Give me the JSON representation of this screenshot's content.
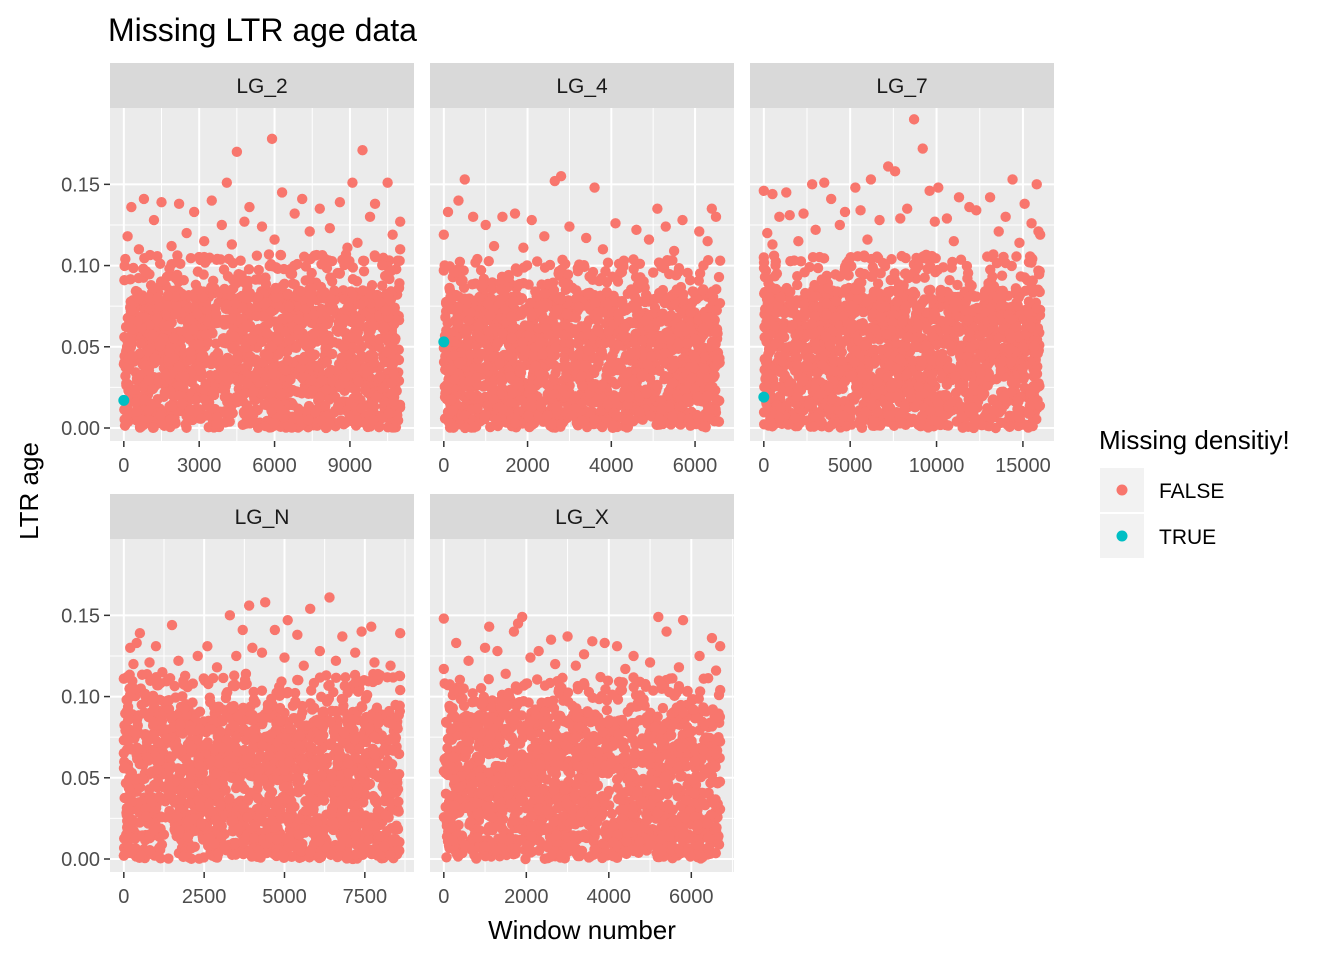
{
  "chart_data": {
    "type": "scatter",
    "title": "Missing LTR age data",
    "xlabel": "Window number",
    "ylabel": "LTR age",
    "legend": {
      "title": "Missing densitiy!",
      "position": "right",
      "entries": [
        {
          "label": "FALSE",
          "color": "#F8766D"
        },
        {
          "label": "TRUE",
          "color": "#00BFC4"
        }
      ]
    },
    "grid": true,
    "y_ticks": [
      0.0,
      0.05,
      0.1,
      0.15
    ],
    "y_tick_labels": [
      "0.00",
      "0.05",
      "0.10",
      "0.15"
    ],
    "ylim": [
      -0.008,
      0.197
    ],
    "panels": [
      {
        "name": "LG_2",
        "xlim": [
          -550,
          11550
        ],
        "x_ticks": [
          0,
          3000,
          6000,
          9000
        ],
        "x_tick_labels": [
          "0",
          "3000",
          "6000",
          "9000"
        ],
        "n_windows": 11000,
        "series": [
          {
            "name": "FALSE",
            "bulk_range": [
              0.0,
              0.085
            ],
            "outliers": [
              [
                4500,
                0.17
              ],
              [
                5900,
                0.178
              ],
              [
                9500,
                0.171
              ],
              [
                4100,
                0.151
              ],
              [
                6300,
                0.145
              ],
              [
                9100,
                0.151
              ],
              [
                10500,
                0.151
              ],
              [
                800,
                0.141
              ],
              [
                3500,
                0.14
              ],
              [
                7100,
                0.141
              ],
              [
                8600,
                0.139
              ],
              [
                2200,
                0.138
              ],
              [
                10000,
                0.138
              ],
              [
                1500,
                0.139
              ],
              [
                5000,
                0.136
              ],
              [
                300,
                0.136
              ],
              [
                7800,
                0.135
              ],
              [
                2800,
                0.133
              ],
              [
                6800,
                0.132
              ],
              [
                9800,
                0.13
              ],
              [
                11000,
                0.127
              ],
              [
                1200,
                0.128
              ],
              [
                4800,
                0.127
              ],
              [
                3900,
                0.125
              ],
              [
                5500,
                0.124
              ],
              [
                8200,
                0.123
              ],
              [
                150,
                0.118
              ],
              [
                2500,
                0.12
              ],
              [
                7400,
                0.121
              ],
              [
                10700,
                0.119
              ],
              [
                60,
                0.104
              ],
              [
                11000,
                0.11
              ],
              [
                10900,
                0.103
              ],
              [
                600,
                0.11
              ],
              [
                3200,
                0.115
              ],
              [
                6000,
                0.116
              ],
              [
                9300,
                0.114
              ],
              [
                1900,
                0.112
              ],
              [
                4300,
                0.113
              ],
              [
                8900,
                0.111
              ]
            ]
          },
          {
            "name": "TRUE",
            "points": [
              [
                0,
                0.017
              ]
            ]
          }
        ]
      },
      {
        "name": "LG_4",
        "xlim": [
          -330,
          6930
        ],
        "x_ticks": [
          0,
          2000,
          4000,
          6000
        ],
        "x_tick_labels": [
          "0",
          "2000",
          "4000",
          "6000"
        ],
        "n_windows": 6600,
        "series": [
          {
            "name": "FALSE",
            "bulk_range": [
              0.0,
              0.082
            ],
            "outliers": [
              [
                2800,
                0.155
              ],
              [
                2650,
                0.152
              ],
              [
                3600,
                0.148
              ],
              [
                500,
                0.153
              ],
              [
                350,
                0.14
              ],
              [
                1400,
                0.13
              ],
              [
                5100,
                0.135
              ],
              [
                6400,
                0.135
              ],
              [
                1700,
                0.132
              ],
              [
                6500,
                0.13
              ],
              [
                100,
                0.133
              ],
              [
                700,
                0.13
              ],
              [
                2100,
                0.128
              ],
              [
                4100,
                0.126
              ],
              [
                5700,
                0.128
              ],
              [
                1000,
                0.125
              ],
              [
                3000,
                0.124
              ],
              [
                4600,
                0.122
              ],
              [
                5300,
                0.124
              ],
              [
                6100,
                0.121
              ],
              [
                0,
                0.119
              ],
              [
                2400,
                0.118
              ],
              [
                3400,
                0.117
              ],
              [
                4900,
                0.116
              ],
              [
                6300,
                0.115
              ],
              [
                1200,
                0.112
              ],
              [
                1900,
                0.111
              ],
              [
                3800,
                0.11
              ],
              [
                5500,
                0.109
              ],
              [
                6600,
                0.103
              ],
              [
                0,
                0.097
              ],
              [
                800,
                0.104
              ],
              [
                2900,
                0.101
              ],
              [
                4300,
                0.103
              ],
              [
                6200,
                0.1
              ]
            ]
          },
          {
            "name": "TRUE",
            "points": [
              [
                0,
                0.053
              ]
            ]
          }
        ]
      },
      {
        "name": "LG_7",
        "xlim": [
          -800,
          16800
        ],
        "x_ticks": [
          0,
          5000,
          10000,
          15000
        ],
        "x_tick_labels": [
          "0",
          "5000",
          "10000",
          "15000"
        ],
        "n_windows": 16000,
        "series": [
          {
            "name": "FALSE",
            "bulk_range": [
              0.0,
              0.085
            ],
            "outliers": [
              [
                8700,
                0.19
              ],
              [
                9200,
                0.172
              ],
              [
                7200,
                0.161
              ],
              [
                7600,
                0.158
              ],
              [
                6200,
                0.153
              ],
              [
                14400,
                0.153
              ],
              [
                15800,
                0.15
              ],
              [
                3500,
                0.151
              ],
              [
                2800,
                0.15
              ],
              [
                5300,
                0.148
              ],
              [
                10100,
                0.148
              ],
              [
                9600,
                0.146
              ],
              [
                0,
                0.146
              ],
              [
                500,
                0.144
              ],
              [
                1300,
                0.145
              ],
              [
                3900,
                0.141
              ],
              [
                11300,
                0.142
              ],
              [
                13100,
                0.142
              ],
              [
                15100,
                0.138
              ],
              [
                11900,
                0.136
              ],
              [
                8300,
                0.135
              ],
              [
                5600,
                0.134
              ],
              [
                4700,
                0.133
              ],
              [
                2300,
                0.132
              ],
              [
                1500,
                0.131
              ],
              [
                900,
                0.13
              ],
              [
                12300,
                0.134
              ],
              [
                14000,
                0.13
              ],
              [
                15500,
                0.126
              ],
              [
                6700,
                0.128
              ],
              [
                7900,
                0.129
              ],
              [
                10600,
                0.129
              ],
              [
                9900,
                0.127
              ],
              [
                4400,
                0.125
              ],
              [
                200,
                0.12
              ],
              [
                3000,
                0.122
              ],
              [
                13600,
                0.121
              ],
              [
                15900,
                0.121
              ],
              [
                16000,
                0.119
              ],
              [
                500,
                0.113
              ],
              [
                2000,
                0.115
              ],
              [
                6000,
                0.116
              ],
              [
                11000,
                0.115
              ],
              [
                14800,
                0.114
              ],
              [
                0,
                0.105
              ]
            ]
          },
          {
            "name": "TRUE",
            "points": [
              [
                0,
                0.019
              ]
            ]
          }
        ]
      },
      {
        "name": "LG_N",
        "xlim": [
          -430,
          9030
        ],
        "x_ticks": [
          0,
          2500,
          5000,
          7500
        ],
        "x_tick_labels": [
          "0",
          "2500",
          "5000",
          "7500"
        ],
        "n_windows": 8600,
        "series": [
          {
            "name": "FALSE",
            "bulk_range": [
              0.0,
              0.092
            ],
            "outliers": [
              [
                6400,
                0.161
              ],
              [
                4400,
                0.158
              ],
              [
                3900,
                0.156
              ],
              [
                5800,
                0.154
              ],
              [
                3300,
                0.15
              ],
              [
                5100,
                0.147
              ],
              [
                1500,
                0.144
              ],
              [
                7700,
                0.143
              ],
              [
                3700,
                0.141
              ],
              [
                4700,
                0.141
              ],
              [
                7400,
                0.14
              ],
              [
                8600,
                0.139
              ],
              [
                500,
                0.139
              ],
              [
                6800,
                0.137
              ],
              [
                5400,
                0.138
              ],
              [
                400,
                0.133
              ],
              [
                200,
                0.13
              ],
              [
                1000,
                0.131
              ],
              [
                2600,
                0.131
              ],
              [
                4000,
                0.13
              ],
              [
                4300,
                0.127
              ],
              [
                6100,
                0.128
              ],
              [
                7200,
                0.127
              ],
              [
                2300,
                0.125
              ],
              [
                3500,
                0.125
              ],
              [
                5000,
                0.124
              ],
              [
                6600,
                0.122
              ],
              [
                7800,
                0.121
              ],
              [
                8300,
                0.119
              ],
              [
                300,
                0.12
              ],
              [
                800,
                0.121
              ],
              [
                1700,
                0.122
              ],
              [
                2900,
                0.118
              ],
              [
                5600,
                0.119
              ],
              [
                0,
                0.111
              ],
              [
                100,
                0.112
              ],
              [
                1200,
                0.115
              ],
              [
                3800,
                0.114
              ],
              [
                6300,
                0.113
              ],
              [
                8600,
                0.104
              ]
            ]
          },
          {
            "name": "TRUE",
            "points": []
          }
        ]
      },
      {
        "name": "LG_X",
        "xlim": [
          -335,
          7035
        ],
        "x_ticks": [
          0,
          2000,
          4000,
          6000
        ],
        "x_tick_labels": [
          "0",
          "2000",
          "4000",
          "6000"
        ],
        "n_windows": 6700,
        "series": [
          {
            "name": "FALSE",
            "bulk_range": [
              0.0,
              0.09
            ],
            "outliers": [
              [
                1900,
                0.149
              ],
              [
                5200,
                0.149
              ],
              [
                0,
                0.148
              ],
              [
                5800,
                0.147
              ],
              [
                1800,
                0.145
              ],
              [
                1100,
                0.143
              ],
              [
                1700,
                0.14
              ],
              [
                5400,
                0.14
              ],
              [
                3000,
                0.137
              ],
              [
                2600,
                0.135
              ],
              [
                300,
                0.133
              ],
              [
                3600,
                0.134
              ],
              [
                4200,
                0.131
              ],
              [
                6700,
                0.131
              ],
              [
                6500,
                0.136
              ],
              [
                3900,
                0.133
              ],
              [
                1000,
                0.13
              ],
              [
                1300,
                0.128
              ],
              [
                2300,
                0.128
              ],
              [
                3400,
                0.126
              ],
              [
                4600,
                0.125
              ],
              [
                6200,
                0.125
              ],
              [
                2100,
                0.124
              ],
              [
                600,
                0.122
              ],
              [
                5000,
                0.121
              ],
              [
                2700,
                0.12
              ],
              [
                3200,
                0.119
              ],
              [
                5700,
                0.118
              ],
              [
                0,
                0.117
              ],
              [
                4400,
                0.117
              ],
              [
                6600,
                0.116
              ],
              [
                1500,
                0.114
              ],
              [
                3800,
                0.112
              ],
              [
                6300,
                0.111
              ],
              [
                6700,
                0.104
              ],
              [
                100,
                0.107
              ],
              [
                2000,
                0.108
              ],
              [
                4900,
                0.106
              ],
              [
                5900,
                0.103
              ],
              [
                700,
                0.102
              ]
            ]
          },
          {
            "name": "TRUE",
            "points": []
          }
        ]
      }
    ]
  },
  "colors": {
    "panel_bg": "#EBEBEB",
    "strip_bg": "#D9D9D9",
    "grid_major": "#FFFFFF",
    "point_false": "#F8766D",
    "point_true": "#00BFC4"
  }
}
